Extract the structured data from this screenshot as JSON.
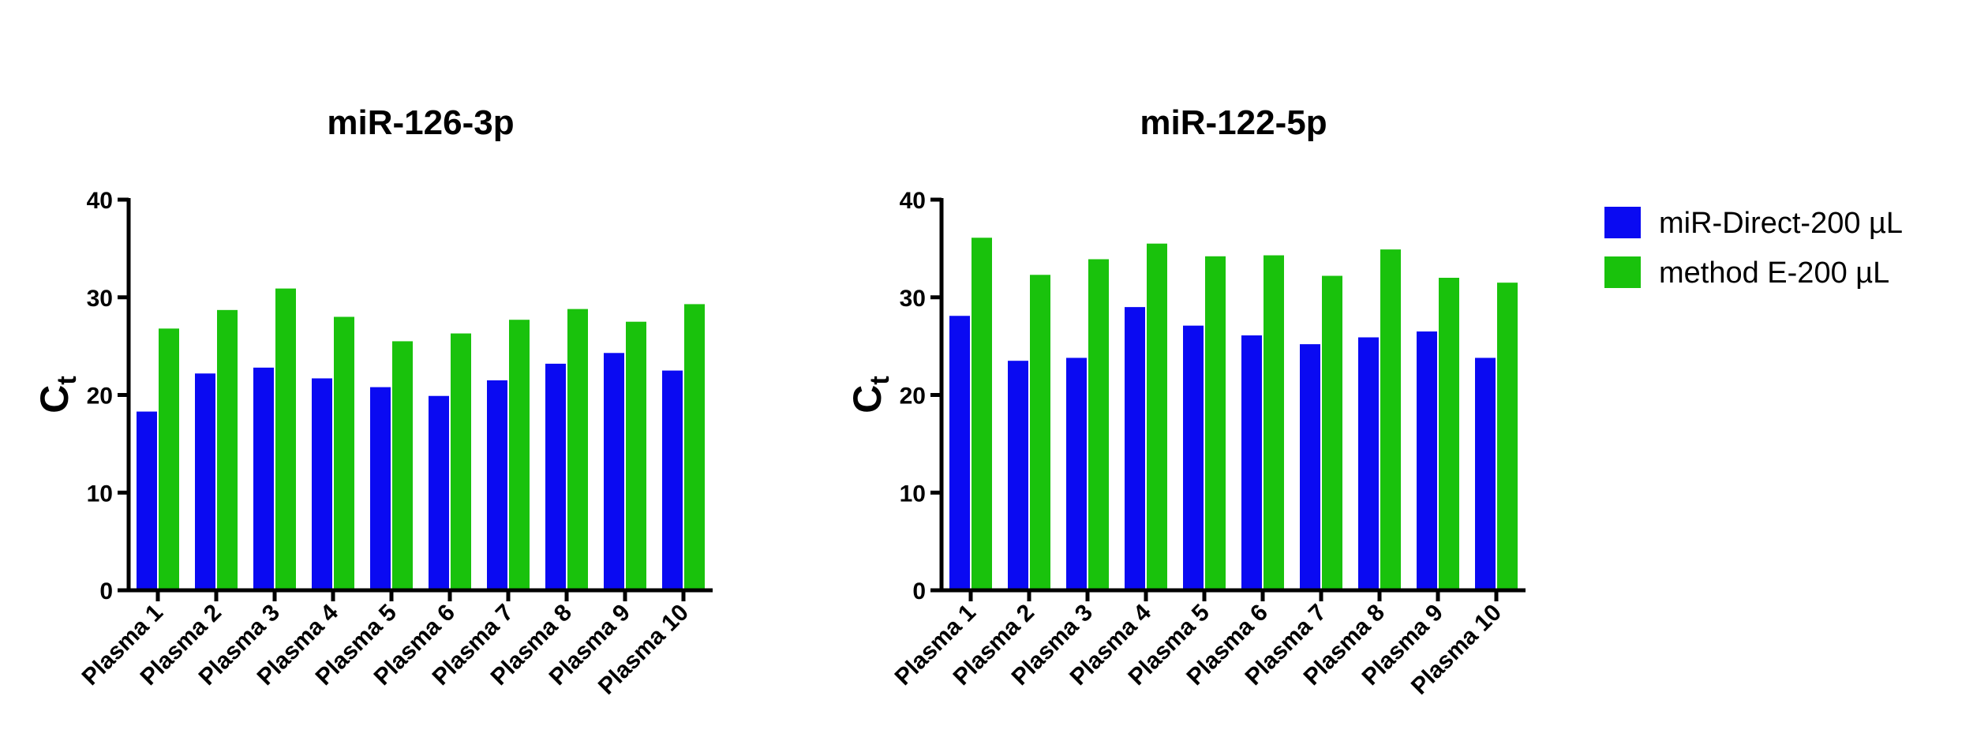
{
  "legend": {
    "items": [
      {
        "label": "miR-Direct-200 µL",
        "color": "#0a0af2"
      },
      {
        "label": "method E-200 µL",
        "color": "#19c20c"
      }
    ],
    "placement": "right"
  },
  "chart_data": [
    {
      "type": "bar",
      "title": "miR-126-3p",
      "ylabel": "C",
      "ylabel_subscript": "t",
      "xlabel": "",
      "ylim": [
        0,
        40
      ],
      "yticks": [
        0,
        10,
        20,
        30,
        40
      ],
      "grid": false,
      "categories": [
        "Plasma 1",
        "Plasma 2",
        "Plasma 3",
        "Plasma 4",
        "Plasma 5",
        "Plasma 6",
        "Plasma 7",
        "Plasma 8",
        "Plasma 9",
        "Plasma 10"
      ],
      "series": [
        {
          "name": "miR-Direct-200 µL",
          "color": "#0a0af2",
          "values": [
            18.3,
            22.2,
            22.8,
            21.7,
            20.8,
            19.9,
            21.5,
            23.2,
            24.3,
            22.5
          ]
        },
        {
          "name": "method E-200 µL",
          "color": "#19c20c",
          "values": [
            26.8,
            28.7,
            30.9,
            28.0,
            25.5,
            26.3,
            27.7,
            28.8,
            27.5,
            29.3
          ]
        }
      ]
    },
    {
      "type": "bar",
      "title": "miR-122-5p",
      "ylabel": "C",
      "ylabel_subscript": "t",
      "xlabel": "",
      "ylim": [
        0,
        40
      ],
      "yticks": [
        0,
        10,
        20,
        30,
        40
      ],
      "grid": false,
      "categories": [
        "Plasma 1",
        "Plasma 2",
        "Plasma 3",
        "Plasma 4",
        "Plasma 5",
        "Plasma 6",
        "Plasma 7",
        "Plasma 8",
        "Plasma 9",
        "Plasma 10"
      ],
      "series": [
        {
          "name": "miR-Direct-200 µL",
          "color": "#0a0af2",
          "values": [
            28.1,
            23.5,
            23.8,
            29.0,
            27.1,
            26.1,
            25.2,
            25.9,
            26.5,
            23.8
          ]
        },
        {
          "name": "method E-200 µL",
          "color": "#19c20c",
          "values": [
            36.1,
            32.3,
            33.9,
            35.5,
            34.2,
            34.3,
            32.2,
            34.9,
            32.0,
            31.5
          ]
        }
      ]
    }
  ]
}
